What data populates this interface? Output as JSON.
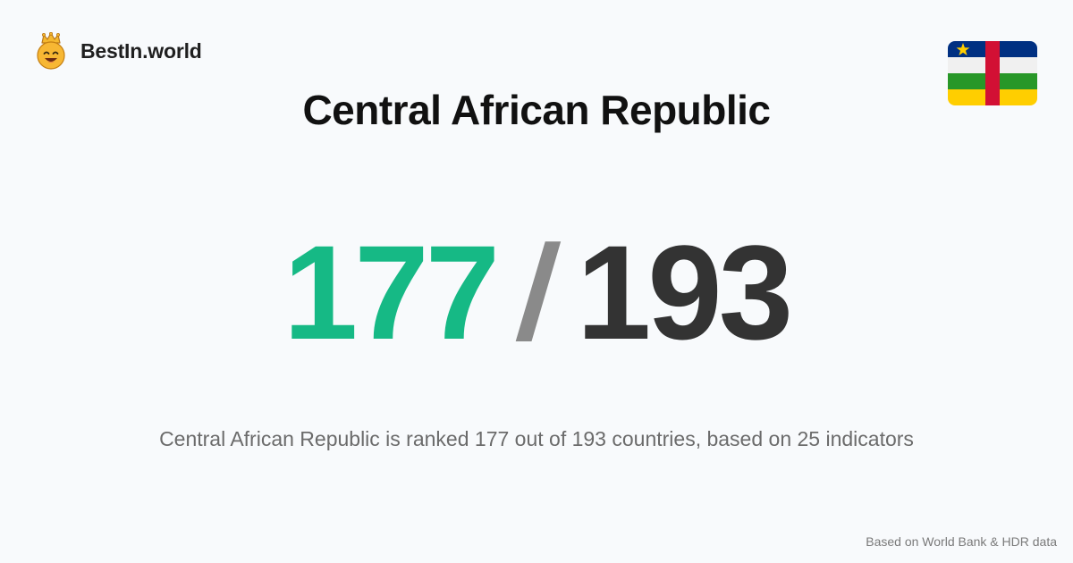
{
  "brand": {
    "name": "BestIn.world",
    "logo_icon": "crowned-smiley-icon"
  },
  "flag": {
    "icon": "central-african-republic-flag-icon",
    "colors": {
      "blue": "#003082",
      "white": "#f0f0f0",
      "green": "#289728",
      "yellow": "#ffce00",
      "red": "#d21034",
      "star": "#ffce00"
    }
  },
  "country": {
    "name": "Central African Republic"
  },
  "ranking": {
    "rank": "177",
    "separator": "/",
    "total": "193",
    "rank_color": "#16b985",
    "total_color": "#333333"
  },
  "summary": {
    "text": "Central African Republic is ranked 177 out of 193 countries, based on 25 indicators"
  },
  "footer": {
    "source": "Based on World Bank & HDR data"
  }
}
